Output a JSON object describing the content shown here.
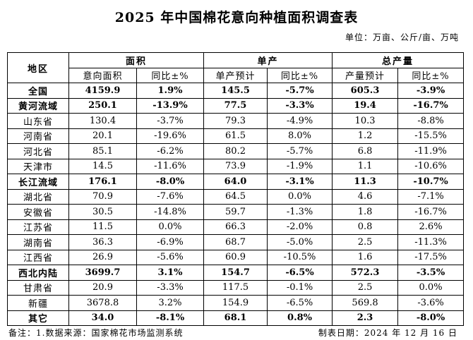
{
  "title": "2025 年中国棉花意向种植面积调查表",
  "unit": "单位：万亩、公斤/亩、万吨",
  "table": {
    "header_region": "地区",
    "groups": [
      "面积",
      "单产",
      "总产量"
    ],
    "subheaders": [
      "意向面积",
      "同比±%",
      "单产预计",
      "同比±%",
      "产量预计",
      "同比±%"
    ],
    "rows": [
      {
        "region": "全国",
        "area": "4159.9",
        "area_yoy": "1.9%",
        "yield": "145.5",
        "yield_yoy": "-5.7%",
        "output": "605.3",
        "output_yoy": "-3.9%"
      },
      {
        "region": "黄河流域",
        "area": "250.1",
        "area_yoy": "-13.9%",
        "yield": "77.5",
        "yield_yoy": "-3.3%",
        "output": "19.4",
        "output_yoy": "-16.7%"
      },
      {
        "region": "山东省",
        "area": "130.4",
        "area_yoy": "-3.7%",
        "yield": "79.3",
        "yield_yoy": "-4.9%",
        "output": "10.3",
        "output_yoy": "-8.8%"
      },
      {
        "region": "河南省",
        "area": "20.1",
        "area_yoy": "-19.6%",
        "yield": "61.5",
        "yield_yoy": "8.0%",
        "output": "1.2",
        "output_yoy": "-15.5%"
      },
      {
        "region": "河北省",
        "area": "85.1",
        "area_yoy": "-6.2%",
        "yield": "80.2",
        "yield_yoy": "-5.7%",
        "output": "6.8",
        "output_yoy": "-11.9%"
      },
      {
        "region": "天津市",
        "area": "14.5",
        "area_yoy": "-11.6%",
        "yield": "73.9",
        "yield_yoy": "-1.9%",
        "output": "1.1",
        "output_yoy": "-10.6%"
      },
      {
        "region": "长江流域",
        "area": "176.1",
        "area_yoy": "-8.0%",
        "yield": "64.0",
        "yield_yoy": "-3.1%",
        "output": "11.3",
        "output_yoy": "-10.7%"
      },
      {
        "region": "湖北省",
        "area": "70.9",
        "area_yoy": "-7.6%",
        "yield": "64.5",
        "yield_yoy": "0.0%",
        "output": "4.6",
        "output_yoy": "-7.1%"
      },
      {
        "region": "安徽省",
        "area": "30.5",
        "area_yoy": "-14.8%",
        "yield": "59.7",
        "yield_yoy": "-1.3%",
        "output": "1.8",
        "output_yoy": "-16.7%"
      },
      {
        "region": "江苏省",
        "area": "11.5",
        "area_yoy": "0.0%",
        "yield": "66.3",
        "yield_yoy": "-2.0%",
        "output": "0.8",
        "output_yoy": "2.6%"
      },
      {
        "region": "湖南省",
        "area": "36.3",
        "area_yoy": "-6.9%",
        "yield": "68.7",
        "yield_yoy": "-5.0%",
        "output": "2.5",
        "output_yoy": "-11.3%"
      },
      {
        "region": "江西省",
        "area": "26.9",
        "area_yoy": "-5.6%",
        "yield": "60.9",
        "yield_yoy": "-10.5%",
        "output": "1.6",
        "output_yoy": "-17.5%"
      },
      {
        "region": "西北内陆",
        "area": "3699.7",
        "area_yoy": "3.1%",
        "yield": "154.7",
        "yield_yoy": "-6.5%",
        "output": "572.3",
        "output_yoy": "-3.5%"
      },
      {
        "region": "甘肃省",
        "area": "20.9",
        "area_yoy": "-3.3%",
        "yield": "117.5",
        "yield_yoy": "-0.1%",
        "output": "2.5",
        "output_yoy": "0.0%"
      },
      {
        "region": "新疆",
        "area": "3678.8",
        "area_yoy": "3.2%",
        "yield": "154.9",
        "yield_yoy": "-6.5%",
        "output": "569.8",
        "output_yoy": "-3.6%"
      },
      {
        "region": "其它",
        "area": "34.0",
        "area_yoy": "-8.1%",
        "yield": "68.1",
        "yield_yoy": "0.8%",
        "output": "2.3",
        "output_yoy": "-8.0%"
      }
    ]
  },
  "footer": {
    "note": "备注：1.数据来源：国家棉花市场监测系统",
    "date": "制表日期：2024 年 12 月 16 日"
  }
}
